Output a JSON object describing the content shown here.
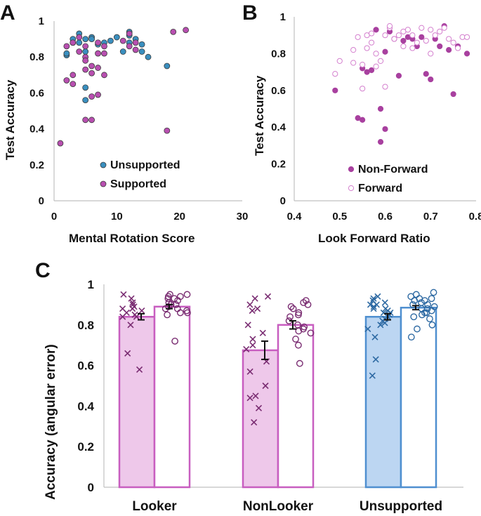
{
  "chart_data": [
    {
      "panel": "A",
      "type": "scatter",
      "xlabel": "Mental Rotation Score",
      "ylabel": "Test Accuracy",
      "xlim": [
        0,
        30
      ],
      "ylim": [
        0,
        1
      ],
      "xticks": [
        0,
        10,
        20,
        30
      ],
      "yticks": [
        0,
        0.2,
        0.4,
        0.6,
        0.8,
        1
      ],
      "ytick_labels": [
        "0",
        "0.2",
        "0.4",
        "0.6",
        "0.8",
        "1"
      ],
      "legend_position": "bottom-center",
      "series": [
        {
          "name": "Unsupported",
          "color": "#3a8fbf",
          "points": [
            [
              2,
              0.81
            ],
            [
              2,
              0.82
            ],
            [
              3,
              0.88
            ],
            [
              3,
              0.9
            ],
            [
              4,
              0.93
            ],
            [
              4,
              0.88
            ],
            [
              5,
              0.9
            ],
            [
              5,
              0.83
            ],
            [
              5,
              0.63
            ],
            [
              5,
              0.56
            ],
            [
              6,
              0.91
            ],
            [
              6,
              0.9
            ],
            [
              7,
              0.87
            ],
            [
              8,
              0.88
            ],
            [
              9,
              0.89
            ],
            [
              10,
              0.91
            ],
            [
              11,
              0.83
            ],
            [
              12,
              0.94
            ],
            [
              12,
              0.92
            ],
            [
              12,
              0.88
            ],
            [
              13,
              0.9
            ],
            [
              14,
              0.87
            ],
            [
              14,
              0.83
            ],
            [
              15,
              0.8
            ],
            [
              18,
              0.75
            ]
          ]
        },
        {
          "name": "Supported",
          "color": "#b84fb0",
          "points": [
            [
              1,
              0.32
            ],
            [
              2,
              0.67
            ],
            [
              2,
              0.86
            ],
            [
              3,
              0.7
            ],
            [
              3,
              0.65
            ],
            [
              3,
              0.88
            ],
            [
              4,
              0.91
            ],
            [
              4,
              0.83
            ],
            [
              5,
              0.45
            ],
            [
              5,
              0.8
            ],
            [
              5,
              0.78
            ],
            [
              5,
              0.73
            ],
            [
              5,
              0.86
            ],
            [
              6,
              0.45
            ],
            [
              6,
              0.58
            ],
            [
              6,
              0.75
            ],
            [
              6,
              0.71
            ],
            [
              7,
              0.59
            ],
            [
              7,
              0.74
            ],
            [
              7,
              0.82
            ],
            [
              7,
              0.88
            ],
            [
              8,
              0.7
            ],
            [
              8,
              0.82
            ],
            [
              8,
              0.86
            ],
            [
              11,
              0.89
            ],
            [
              12,
              0.93
            ],
            [
              12,
              0.86
            ],
            [
              13,
              0.84
            ],
            [
              13,
              0.88
            ],
            [
              18,
              0.39
            ],
            [
              19,
              0.94
            ],
            [
              21,
              0.95
            ]
          ]
        }
      ]
    },
    {
      "panel": "B",
      "type": "scatter",
      "xlabel": "Look Forward Ratio",
      "ylabel": "Test Accuracy",
      "xlim": [
        0.4,
        0.8
      ],
      "ylim": [
        0,
        1
      ],
      "xticks": [
        0.4,
        0.5,
        0.6,
        0.7,
        0.8
      ],
      "xtick_labels": [
        "0.4",
        "0.5",
        "0.6",
        "0.7",
        "0.8"
      ],
      "yticks": [
        0,
        0.2,
        0.4,
        0.6,
        0.8,
        1
      ],
      "ytick_labels": [
        "0",
        "0.2",
        "0.4",
        "0.6",
        "0.8",
        "1"
      ],
      "legend_position": "bottom-center",
      "series": [
        {
          "name": "Non-Forward",
          "color": "#a8409f",
          "filled": true,
          "points": [
            [
              0.49,
              0.6
            ],
            [
              0.54,
              0.45
            ],
            [
              0.55,
              0.44
            ],
            [
              0.55,
              0.72
            ],
            [
              0.56,
              0.7
            ],
            [
              0.57,
              0.71
            ],
            [
              0.58,
              0.93
            ],
            [
              0.59,
              0.32
            ],
            [
              0.59,
              0.5
            ],
            [
              0.6,
              0.39
            ],
            [
              0.6,
              0.81
            ],
            [
              0.61,
              0.92
            ],
            [
              0.62,
              0.88
            ],
            [
              0.63,
              0.68
            ],
            [
              0.64,
              0.87
            ],
            [
              0.65,
              0.89
            ],
            [
              0.66,
              0.88
            ],
            [
              0.67,
              0.84
            ],
            [
              0.68,
              0.89
            ],
            [
              0.69,
              0.69
            ],
            [
              0.7,
              0.66
            ],
            [
              0.71,
              0.88
            ],
            [
              0.72,
              0.84
            ],
            [
              0.73,
              0.95
            ],
            [
              0.74,
              0.82
            ],
            [
              0.75,
              0.58
            ],
            [
              0.76,
              0.84
            ],
            [
              0.78,
              0.8
            ]
          ]
        },
        {
          "name": "Forward",
          "color": "#d47fce",
          "filled": false,
          "points": [
            [
              0.49,
              0.69
            ],
            [
              0.5,
              0.76
            ],
            [
              0.53,
              0.82
            ],
            [
              0.54,
              0.89
            ],
            [
              0.55,
              0.74
            ],
            [
              0.55,
              0.61
            ],
            [
              0.56,
              0.83
            ],
            [
              0.56,
              0.9
            ],
            [
              0.57,
              0.86
            ],
            [
              0.58,
              0.8
            ],
            [
              0.58,
              0.73
            ],
            [
              0.59,
              0.76
            ],
            [
              0.6,
              0.9
            ],
            [
              0.6,
              0.62
            ],
            [
              0.61,
              0.94
            ],
            [
              0.62,
              0.88
            ],
            [
              0.63,
              0.9
            ],
            [
              0.64,
              0.84
            ],
            [
              0.64,
              0.92
            ],
            [
              0.65,
              0.93
            ],
            [
              0.66,
              0.9
            ],
            [
              0.66,
              0.83
            ],
            [
              0.67,
              0.86
            ],
            [
              0.68,
              0.94
            ],
            [
              0.69,
              0.87
            ],
            [
              0.7,
              0.93
            ],
            [
              0.7,
              0.8
            ],
            [
              0.71,
              0.9
            ],
            [
              0.72,
              0.92
            ],
            [
              0.73,
              0.94
            ],
            [
              0.74,
              0.88
            ],
            [
              0.75,
              0.86
            ],
            [
              0.76,
              0.83
            ],
            [
              0.77,
              0.89
            ],
            [
              0.78,
              0.89
            ],
            [
              0.61,
              0.95
            ],
            [
              0.57,
              0.91
            ],
            [
              0.53,
              0.75
            ]
          ]
        }
      ]
    },
    {
      "panel": "C",
      "type": "bar",
      "ylabel": "Accuracy (angular error)",
      "ylim": [
        0,
        1
      ],
      "yticks": [
        0,
        0.2,
        0.4,
        0.6,
        0.8,
        1
      ],
      "ytick_labels": [
        "0",
        "0.2",
        "0.4",
        "0.6",
        "0.8",
        "1"
      ],
      "categories": [
        "Looker",
        "NonLooker",
        "Unsupported"
      ],
      "groups": [
        {
          "category": "Looker",
          "color": "#c85ec0",
          "bars": [
            {
              "kind": "non-forward",
              "filled": true,
              "mean": 0.84,
              "err": 0.015,
              "marker": "x",
              "points": [
                0.88,
                0.89,
                0.95,
                0.86,
                0.93,
                0.9,
                0.84,
                0.87,
                0.85,
                0.8,
                0.66,
                0.58,
                0.84,
                0.88,
                0.91
              ]
            },
            {
              "kind": "forward",
              "filled": false,
              "mean": 0.89,
              "err": 0.01,
              "marker": "o",
              "points": [
                0.95,
                0.94,
                0.93,
                0.92,
                0.9,
                0.89,
                0.88,
                0.87,
                0.86,
                0.85,
                0.72,
                0.95,
                0.91,
                0.93,
                0.88,
                0.86,
                0.9,
                0.94
              ]
            }
          ]
        },
        {
          "category": "NonLooker",
          "color": "#c85ec0",
          "bars": [
            {
              "kind": "non-forward",
              "filled": true,
              "mean": 0.675,
              "err": 0.045,
              "marker": "x",
              "points": [
                0.94,
                0.93,
                0.9,
                0.88,
                0.87,
                0.8,
                0.76,
                0.73,
                0.7,
                0.68,
                0.62,
                0.57,
                0.5,
                0.45,
                0.44,
                0.39,
                0.32
              ]
            },
            {
              "kind": "forward",
              "filled": false,
              "mean": 0.8,
              "err": 0.02,
              "marker": "o",
              "points": [
                0.92,
                0.91,
                0.89,
                0.88,
                0.86,
                0.84,
                0.82,
                0.8,
                0.79,
                0.78,
                0.76,
                0.73,
                0.7,
                0.61,
                0.85,
                0.9,
                0.77
              ]
            }
          ]
        },
        {
          "category": "Unsupported",
          "color": "#4f8fd0",
          "bars": [
            {
              "kind": "non-forward",
              "filled": true,
              "mean": 0.84,
              "err": 0.015,
              "marker": "x",
              "points": [
                0.94,
                0.93,
                0.92,
                0.91,
                0.9,
                0.89,
                0.88,
                0.87,
                0.86,
                0.85,
                0.84,
                0.83,
                0.82,
                0.8,
                0.78,
                0.74,
                0.63,
                0.55,
                0.9,
                0.86,
                0.81,
                0.88
              ]
            },
            {
              "kind": "forward",
              "filled": false,
              "mean": 0.885,
              "err": 0.01,
              "marker": "o",
              "points": [
                0.96,
                0.94,
                0.93,
                0.92,
                0.91,
                0.9,
                0.89,
                0.88,
                0.87,
                0.86,
                0.85,
                0.84,
                0.83,
                0.8,
                0.78,
                0.74,
                0.92,
                0.9,
                0.88,
                0.86,
                0.93,
                0.95
              ]
            }
          ]
        }
      ]
    }
  ]
}
